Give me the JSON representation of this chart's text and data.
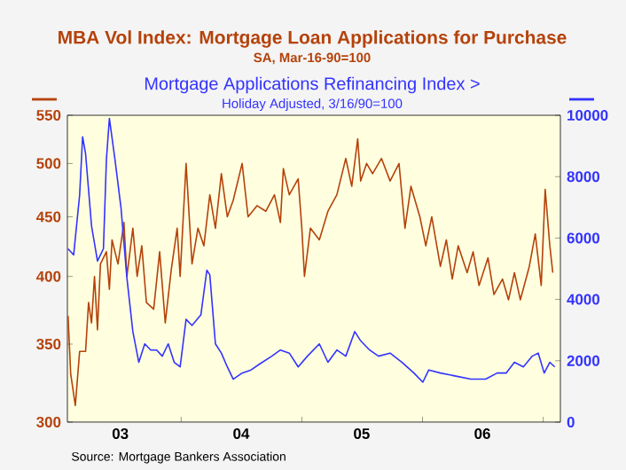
{
  "chart_data": {
    "type": "line",
    "log": "y",
    "legend": "top",
    "annotations": [
      "SA, Mar-16-90=100",
      "Holiday Adjusted, 3/16/90=100",
      "Source:  Mortgage Bankers Association"
    ],
    "xlim": [
      "2003-01-22",
      "2007-02-22"
    ],
    "xticks": [
      {
        "value": "2003-07-01",
        "label": "03"
      },
      {
        "value": "2004-01-01",
        "label": null
      },
      {
        "value": "2004-07-01",
        "label": "04"
      },
      {
        "value": "2005-01-01",
        "label": null
      },
      {
        "value": "2005-07-01",
        "label": "05"
      },
      {
        "value": "2006-01-01",
        "label": null
      },
      {
        "value": "2006-07-01",
        "label": "06"
      },
      {
        "value": "2007-01-01",
        "label": null
      }
    ],
    "ylim": [
      300,
      550
    ],
    "yticks": [
      300,
      350,
      400,
      450,
      500,
      550
    ],
    "y2lim": [
      0,
      10000
    ],
    "y2ticks": [
      0,
      2000,
      4000,
      6000,
      8000,
      10000
    ],
    "series": [
      {
        "name": "MBA Vol Index: Mortgage Loan Applications for Purchase",
        "color": "#b5420a",
        "x": [
          "2003-01-24",
          "2003-02-01",
          "2003-02-15",
          "2003-02-28",
          "2003-03-18",
          "2003-03-27",
          "2003-04-05",
          "2003-04-14",
          "2003-04-23",
          "2003-05-02",
          "2003-05-20",
          "2003-05-29",
          "2003-06-06",
          "2003-06-24",
          "2003-07-12",
          "2003-07-21",
          "2003-08-08",
          "2003-08-21",
          "2003-09-04",
          "2003-09-18",
          "2003-10-10",
          "2003-10-28",
          "2003-11-14",
          "2003-12-02",
          "2003-12-20",
          "2003-12-29",
          "2004-01-16",
          "2004-02-03",
          "2004-02-21",
          "2004-03-10",
          "2004-03-28",
          "2004-04-14",
          "2004-05-02",
          "2004-05-20",
          "2004-06-07",
          "2004-07-04",
          "2004-07-22",
          "2004-08-18",
          "2004-09-14",
          "2004-10-10",
          "2004-10-28",
          "2004-11-06",
          "2004-11-24",
          "2004-12-12",
          "2004-12-21",
          "2005-01-01",
          "2005-01-09",
          "2005-01-27",
          "2005-02-23",
          "2005-03-21",
          "2005-04-17",
          "2005-05-14",
          "2005-06-01",
          "2005-06-19",
          "2005-06-28",
          "2005-07-16",
          "2005-08-03",
          "2005-08-30",
          "2005-09-25",
          "2005-10-22",
          "2005-11-09",
          "2005-11-27",
          "2005-12-24",
          "2006-01-11",
          "2006-01-29",
          "2006-02-24",
          "2006-03-14",
          "2006-04-01",
          "2006-04-19",
          "2006-05-16",
          "2006-06-03",
          "2006-06-21",
          "2006-07-18",
          "2006-08-05",
          "2006-08-31",
          "2006-09-18",
          "2006-10-06",
          "2006-10-24",
          "2006-11-20",
          "2006-12-08",
          "2006-12-26",
          "2007-01-07",
          "2007-01-21",
          "2007-01-30"
        ],
        "values": [
          370,
          330,
          310,
          345,
          345,
          380,
          365,
          400,
          360,
          410,
          420,
          390,
          430,
          410,
          445,
          400,
          440,
          400,
          425,
          380,
          375,
          420,
          365,
          405,
          440,
          400,
          500,
          410,
          440,
          425,
          470,
          440,
          490,
          450,
          465,
          500,
          450,
          460,
          455,
          470,
          445,
          495,
          470,
          480,
          485,
          440,
          400,
          440,
          430,
          455,
          470,
          505,
          478,
          525,
          483,
          500,
          490,
          505,
          483,
          500,
          440,
          478,
          450,
          425,
          450,
          408,
          430,
          398,
          425,
          403,
          420,
          393,
          415,
          386,
          398,
          382,
          403,
          382,
          408,
          435,
          393,
          475,
          425,
          403
        ]
      },
      {
        "name": "Mortgage Applications Refinancing Index  >",
        "color": "#3333ff",
        "axis": "y2",
        "x": [
          "2003-01-24",
          "2003-02-10",
          "2003-02-28",
          "2003-03-09",
          "2003-03-18",
          "2003-04-05",
          "2003-04-23",
          "2003-05-11",
          "2003-05-20",
          "2003-05-29",
          "2003-06-15",
          "2003-07-03",
          "2003-07-21",
          "2003-08-08",
          "2003-08-26",
          "2003-09-13",
          "2003-10-01",
          "2003-10-19",
          "2003-11-05",
          "2003-11-23",
          "2003-12-11",
          "2003-12-29",
          "2004-01-16",
          "2004-02-03",
          "2004-03-01",
          "2004-03-19",
          "2004-03-28",
          "2004-04-14",
          "2004-05-02",
          "2004-05-20",
          "2004-06-07",
          "2004-07-04",
          "2004-07-31",
          "2004-08-27",
          "2004-10-02",
          "2004-10-28",
          "2004-11-24",
          "2004-12-21",
          "2005-01-18",
          "2005-02-23",
          "2005-03-21",
          "2005-04-17",
          "2005-05-14",
          "2005-06-10",
          "2005-06-28",
          "2005-07-25",
          "2005-08-21",
          "2005-09-25",
          "2005-10-31",
          "2005-12-06",
          "2006-01-02",
          "2006-01-20",
          "2006-02-24",
          "2006-04-12",
          "2006-05-27",
          "2006-07-11",
          "2006-08-15",
          "2006-09-11",
          "2006-10-06",
          "2006-11-02",
          "2006-11-29",
          "2006-12-17",
          "2007-01-04",
          "2007-01-21",
          "2007-02-05"
        ],
        "values": [
          5650,
          5450,
          7400,
          9300,
          8750,
          6400,
          5250,
          5650,
          8550,
          9900,
          8550,
          7000,
          4700,
          2950,
          1950,
          2550,
          2350,
          2350,
          2150,
          2550,
          1950,
          1800,
          3350,
          3150,
          3500,
          4950,
          4800,
          2550,
          2250,
          1800,
          1400,
          1600,
          1700,
          1900,
          2150,
          2350,
          2250,
          1800,
          2150,
          2550,
          1950,
          2350,
          2150,
          2950,
          2650,
          2350,
          2150,
          2250,
          1950,
          1600,
          1300,
          1700,
          1600,
          1500,
          1400,
          1400,
          1600,
          1600,
          1950,
          1800,
          2150,
          2250,
          1600,
          1950,
          1800
        ]
      }
    ]
  }
}
